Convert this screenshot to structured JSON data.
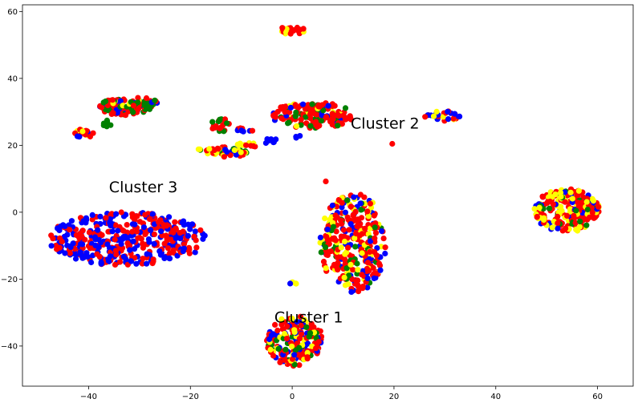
{
  "chart_data": {
    "type": "scatter",
    "title": "",
    "xlabel": "",
    "ylabel": "",
    "xlim": [
      -53,
      67
    ],
    "ylim": [
      -52,
      62
    ],
    "xticks": [
      -40,
      -20,
      0,
      20,
      40,
      60
    ],
    "yticks": [
      -40,
      -20,
      0,
      20,
      40,
      60
    ],
    "grid": false,
    "colors": {
      "red": "#ff0000",
      "blue": "#0000ff",
      "green": "#008000",
      "yellow": "#ffff00"
    },
    "annotations": [
      {
        "text": "Cluster 1",
        "x": -3.5,
        "y": -33
      },
      {
        "text": "Cluster 2",
        "x": 11.5,
        "y": 25
      },
      {
        "text": "Cluster 3",
        "x": -36,
        "y": 6
      }
    ],
    "clusters": [
      {
        "cx": -32.5,
        "cy": -8,
        "rx": 15.5,
        "ry": 8,
        "n": 420,
        "mix": {
          "blue": 0.5,
          "red": 0.5
        },
        "seed": 11
      },
      {
        "cx": 12,
        "cy": -9,
        "rx": 6.5,
        "ry": 15,
        "n": 330,
        "mix": {
          "red": 0.55,
          "blue": 0.15,
          "green": 0.12,
          "yellow": 0.18
        },
        "seed": 22
      },
      {
        "cx": 0.5,
        "cy": -38.5,
        "rx": 5.5,
        "ry": 7.5,
        "n": 210,
        "mix": {
          "red": 0.4,
          "yellow": 0.25,
          "blue": 0.2,
          "green": 0.15
        },
        "seed": 33
      },
      {
        "cx": 54,
        "cy": 0.5,
        "rx": 6.5,
        "ry": 6.5,
        "n": 230,
        "mix": {
          "red": 0.4,
          "yellow": 0.4,
          "blue": 0.1,
          "green": 0.1
        },
        "seed": 44
      },
      {
        "cx": 4,
        "cy": 29,
        "rx": 8,
        "ry": 4,
        "n": 160,
        "mix": {
          "red": 0.6,
          "green": 0.2,
          "yellow": 0.1,
          "blue": 0.1
        },
        "seed": 55
      },
      {
        "cx": -33,
        "cy": 31.5,
        "rx": 5,
        "ry": 2.5,
        "n": 95,
        "mix": {
          "red": 0.45,
          "green": 0.3,
          "blue": 0.15,
          "yellow": 0.1
        },
        "seed": 66
      },
      {
        "cx": -29,
        "cy": 32.5,
        "rx": 3,
        "ry": 2,
        "n": 35,
        "mix": {
          "green": 0.4,
          "red": 0.3,
          "blue": 0.2,
          "yellow": 0.1
        },
        "seed": 67
      },
      {
        "cx": -41,
        "cy": 23.5,
        "rx": 2,
        "ry": 1.3,
        "n": 20,
        "mix": {
          "red": 0.6,
          "yellow": 0.2,
          "blue": 0.2
        },
        "seed": 77
      },
      {
        "cx": -36.5,
        "cy": 26.5,
        "rx": 1,
        "ry": 1,
        "n": 6,
        "mix": {
          "green": 1.0
        },
        "seed": 78
      },
      {
        "cx": -14,
        "cy": 26,
        "rx": 2,
        "ry": 2,
        "n": 22,
        "mix": {
          "red": 0.6,
          "green": 0.4
        },
        "seed": 88
      },
      {
        "cx": -9.5,
        "cy": 24.5,
        "rx": 1.8,
        "ry": 0.8,
        "n": 8,
        "mix": {
          "blue": 0.5,
          "red": 0.5
        },
        "seed": 89
      },
      {
        "cx": -13,
        "cy": 18,
        "rx": 4.5,
        "ry": 1.5,
        "n": 42,
        "mix": {
          "red": 0.5,
          "yellow": 0.3,
          "blue": 0.1,
          "green": 0.1
        },
        "seed": 99
      },
      {
        "cx": -9,
        "cy": 20,
        "rx": 2,
        "ry": 0.8,
        "n": 12,
        "mix": {
          "red": 0.6,
          "yellow": 0.4
        },
        "seed": 98
      },
      {
        "cx": -18.5,
        "cy": 18.8,
        "rx": 0.5,
        "ry": 0.5,
        "n": 3,
        "mix": {
          "yellow": 0.5,
          "green": 0.5
        },
        "seed": 97
      },
      {
        "cx": -4.5,
        "cy": 21.5,
        "rx": 1.5,
        "ry": 1,
        "n": 7,
        "mix": {
          "blue": 0.6,
          "red": 0.4
        },
        "seed": 96
      },
      {
        "cx": 29.5,
        "cy": 28.8,
        "rx": 3.5,
        "ry": 1.5,
        "n": 30,
        "mix": {
          "blue": 0.45,
          "red": 0.45,
          "yellow": 0.1
        },
        "seed": 111
      },
      {
        "cx": 0,
        "cy": 54.5,
        "rx": 2.5,
        "ry": 1.3,
        "n": 24,
        "mix": {
          "red": 0.6,
          "yellow": 0.4
        },
        "seed": 122
      },
      {
        "cx": 0.5,
        "cy": -21,
        "rx": 1.5,
        "ry": 0.5,
        "n": 4,
        "mix": {
          "blue": 0.5,
          "yellow": 0.5
        },
        "seed": 133
      },
      {
        "cx": 6.5,
        "cy": 9,
        "rx": 0.5,
        "ry": 0.5,
        "n": 1,
        "mix": {
          "red": 1.0
        },
        "seed": 144
      },
      {
        "cx": 19.5,
        "cy": 20.5,
        "rx": 0.3,
        "ry": 0.3,
        "n": 1,
        "mix": {
          "red": 1.0
        },
        "seed": 155
      },
      {
        "cx": 1,
        "cy": 22.5,
        "rx": 1,
        "ry": 0.4,
        "n": 3,
        "mix": {
          "blue": 1.0
        },
        "seed": 166
      }
    ]
  }
}
